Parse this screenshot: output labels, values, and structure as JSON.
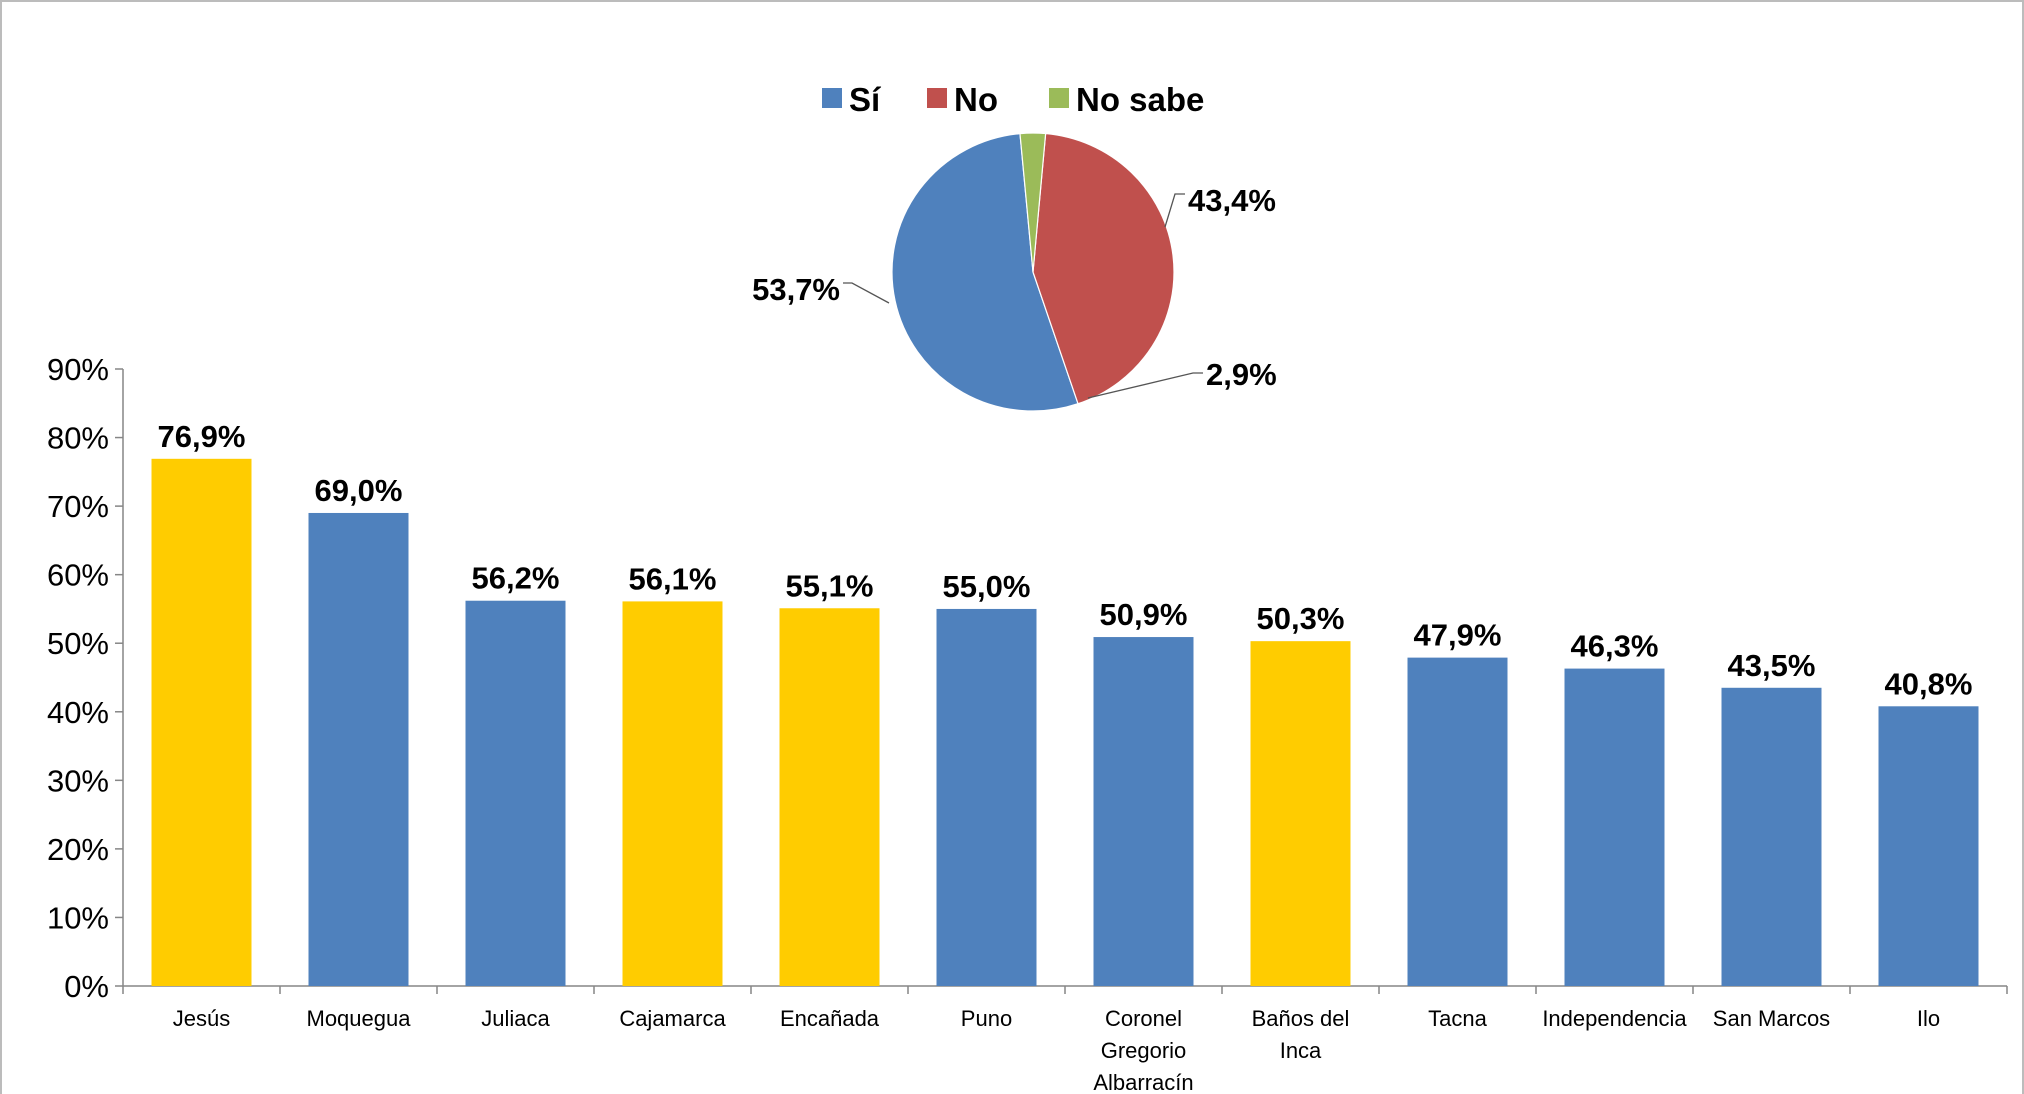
{
  "chart_data": [
    {
      "type": "bar",
      "categories": [
        "Jesús",
        "Moquegua",
        "Juliaca",
        "Cajamarca",
        "Encañada",
        "Puno",
        "Coronel Gregorio Albarracín",
        "Baños del Inca",
        "Tacna",
        "Independencia",
        "San Marcos",
        "Ilo"
      ],
      "category_lines": [
        [
          "Jesús"
        ],
        [
          "Moquegua"
        ],
        [
          "Juliaca"
        ],
        [
          "Cajamarca"
        ],
        [
          "Encañada"
        ],
        [
          "Puno"
        ],
        [
          "Coronel",
          "Gregorio",
          "Albarracín"
        ],
        [
          "Baños del",
          "Inca"
        ],
        [
          "Tacna"
        ],
        [
          "Independencia"
        ],
        [
          "San Marcos"
        ],
        [
          "Ilo"
        ]
      ],
      "values": [
        76.9,
        69.0,
        56.2,
        56.1,
        55.1,
        55.0,
        50.9,
        50.3,
        47.9,
        46.3,
        43.5,
        40.8
      ],
      "value_labels": [
        "76,9%",
        "69,0%",
        "56,2%",
        "56,1%",
        "55,1%",
        "55,0%",
        "50,9%",
        "50,3%",
        "47,9%",
        "46,3%",
        "43,5%",
        "40,8%"
      ],
      "bar_colors": [
        "#FFCC00",
        "#4F81BD",
        "#4F81BD",
        "#FFCC00",
        "#FFCC00",
        "#4F81BD",
        "#4F81BD",
        "#FFCC00",
        "#4F81BD",
        "#4F81BD",
        "#4F81BD",
        "#4F81BD"
      ],
      "y_ticks": [
        0,
        10,
        20,
        30,
        40,
        50,
        60,
        70,
        80,
        90
      ],
      "y_tick_labels": [
        "0%",
        "10%",
        "20%",
        "30%",
        "40%",
        "50%",
        "60%",
        "70%",
        "80%",
        "90%"
      ],
      "ylim": [
        0,
        90
      ],
      "title": "",
      "xlabel": "",
      "ylabel": "",
      "grid": false
    },
    {
      "type": "pie",
      "categories": [
        "Sí",
        "No",
        "No sabe"
      ],
      "values": [
        53.7,
        43.4,
        2.9
      ],
      "value_labels": [
        "53,7%",
        "43,4%",
        "2,9%"
      ],
      "colors": [
        "#4F81BD",
        "#C0504D",
        "#9BBB59"
      ],
      "legend_position": "top"
    }
  ]
}
